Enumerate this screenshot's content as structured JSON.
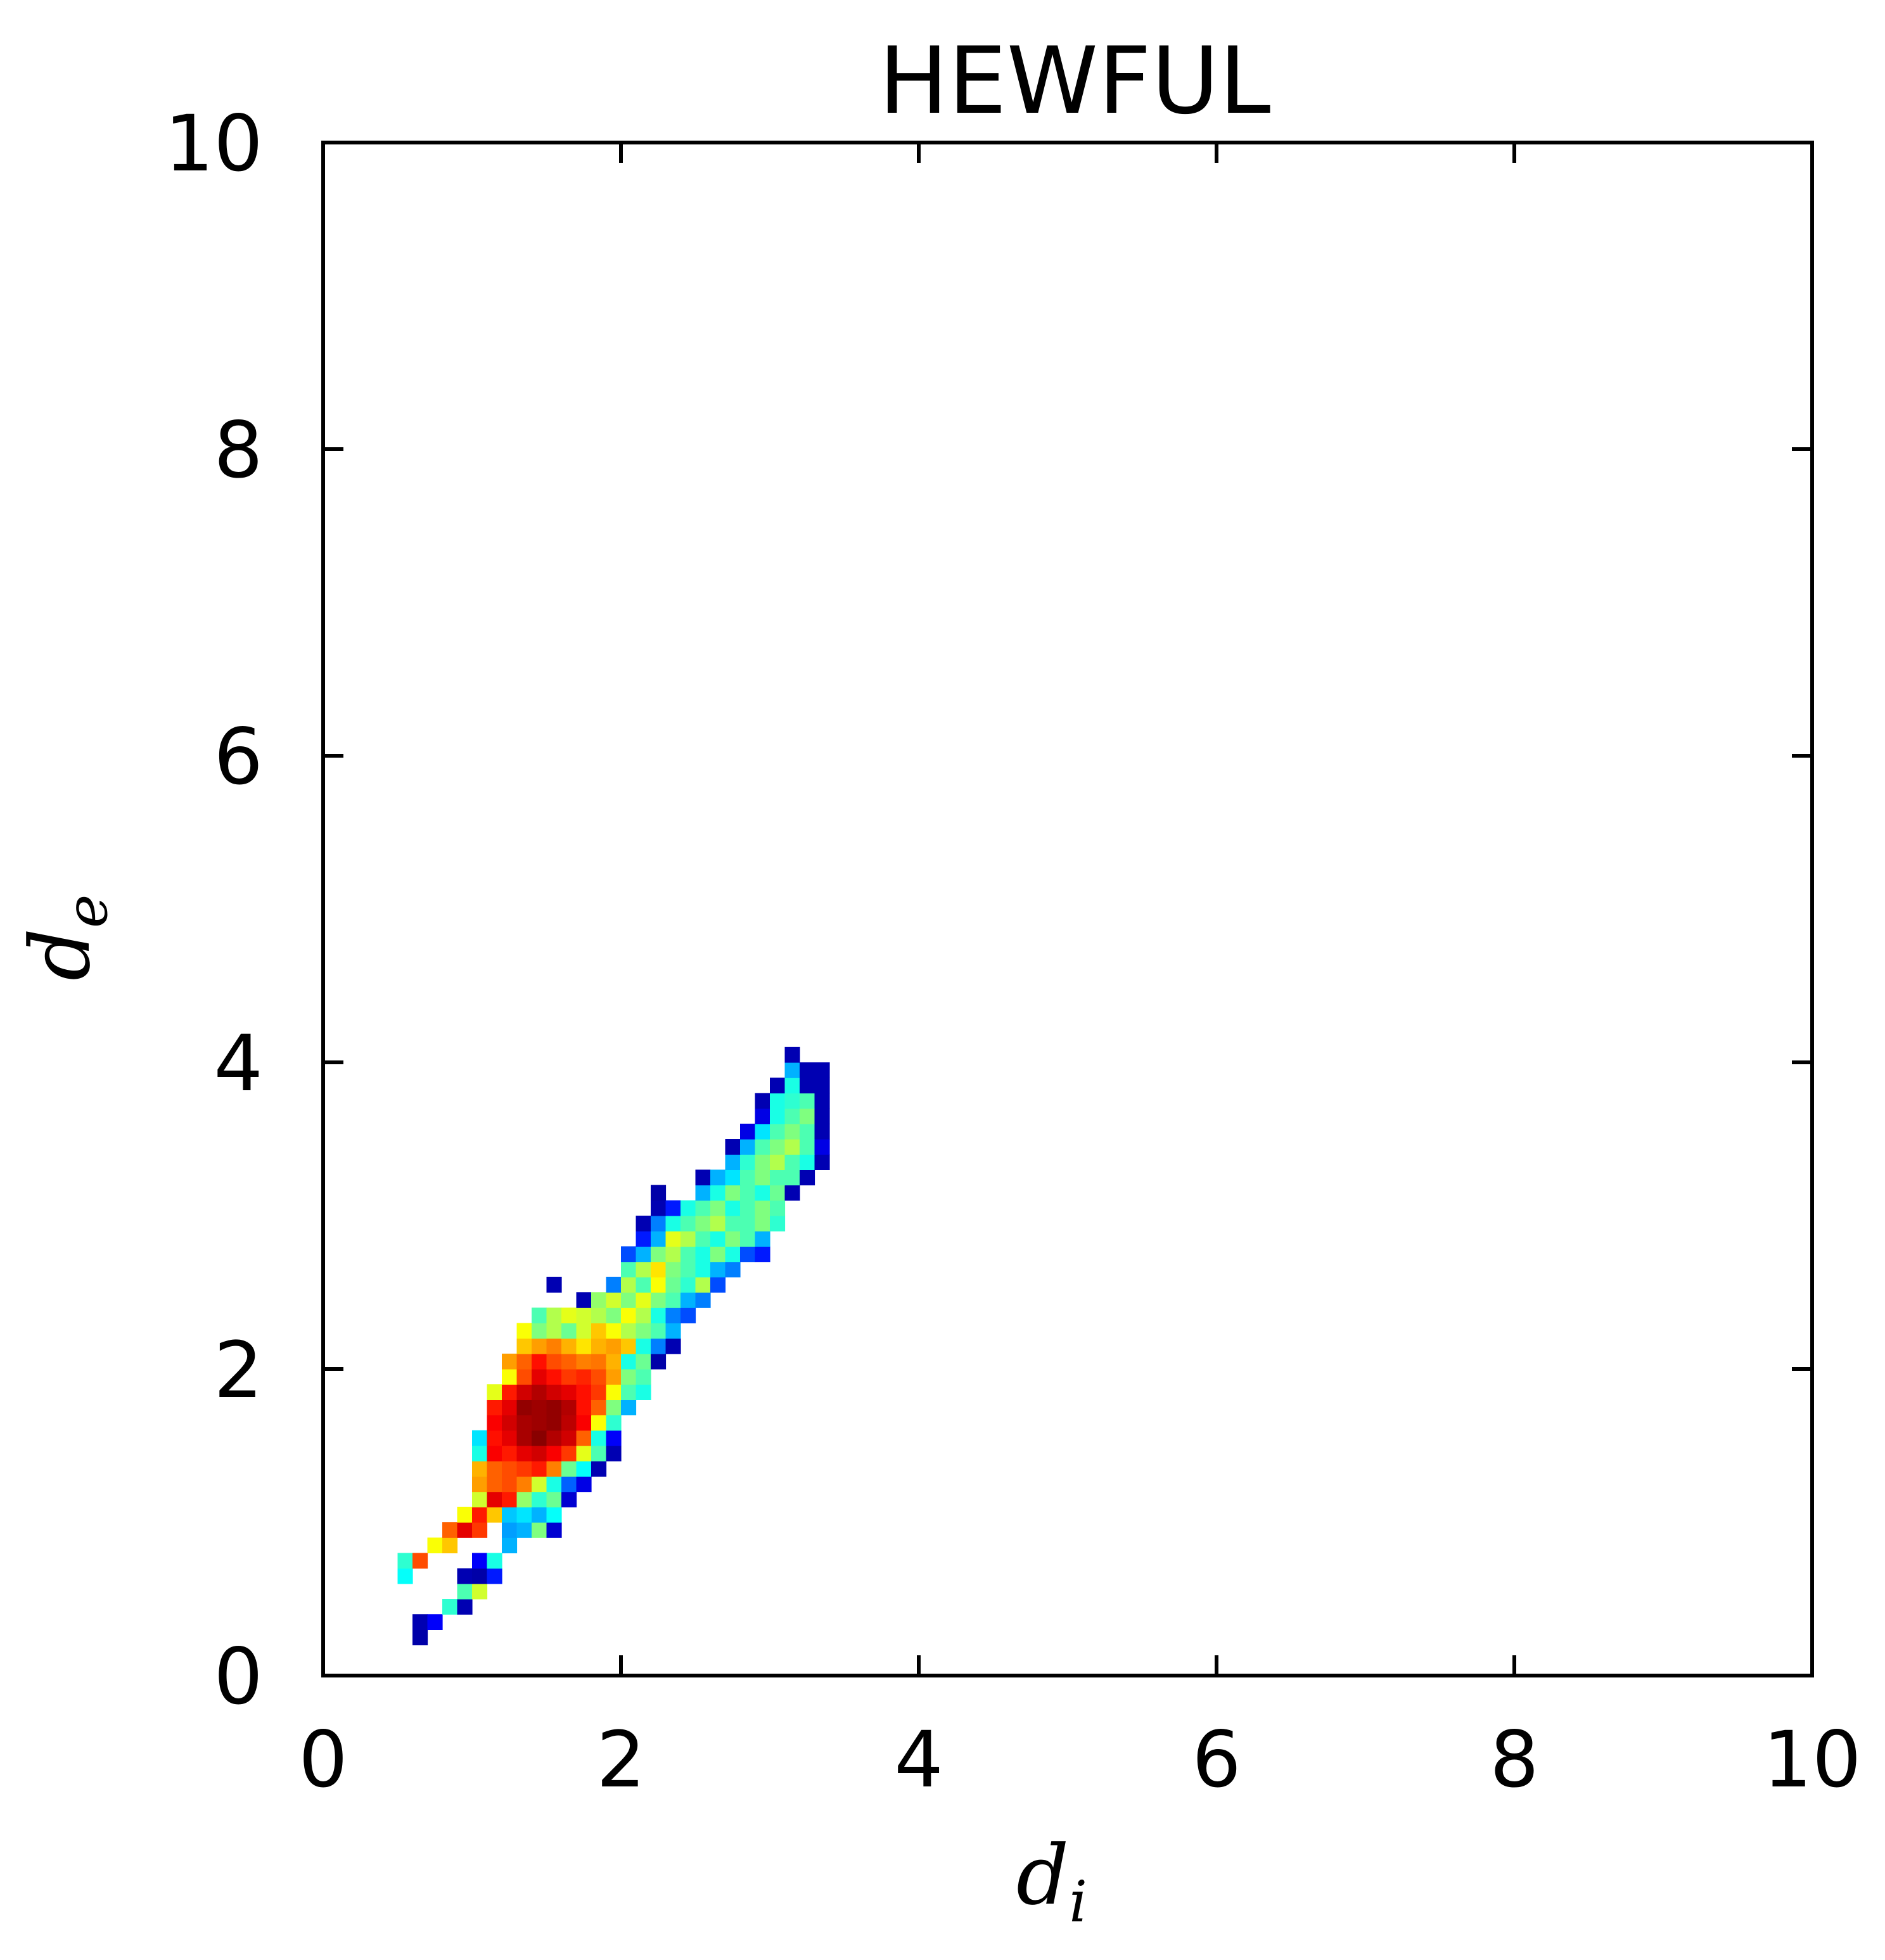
{
  "chart_data": {
    "type": "heatmap",
    "title": "HEWFUL",
    "xlabel": {
      "symbol": "d",
      "subscript": "i"
    },
    "ylabel": {
      "symbol": "d",
      "subscript": "e"
    },
    "xlim": [
      0,
      10
    ],
    "ylim": [
      0,
      10
    ],
    "xticks": [
      "0",
      "2",
      "4",
      "6",
      "8",
      "10"
    ],
    "yticks": [
      "0",
      "2",
      "4",
      "6",
      "8",
      "10"
    ],
    "grid": false,
    "legend": "none",
    "colormap": "jet",
    "colorscale_stops": [
      "#00007f",
      "#0000ff",
      "#007fff",
      "#00ffff",
      "#7fff7f",
      "#ffff00",
      "#ff7f00",
      "#ff0000",
      "#7f0000"
    ],
    "bin_size": 0.1,
    "value_range": [
      0,
      1
    ],
    "cells": [
      [
        0.65,
        0.25,
        0.04
      ],
      [
        0.65,
        0.35,
        0.05
      ],
      [
        0.75,
        0.35,
        0.12
      ],
      [
        0.85,
        0.45,
        0.42
      ],
      [
        0.95,
        0.45,
        0.05
      ],
      [
        0.95,
        0.55,
        0.45
      ],
      [
        1.05,
        0.55,
        0.58
      ],
      [
        0.95,
        0.65,
        0.05
      ],
      [
        1.05,
        0.65,
        0.04
      ],
      [
        1.15,
        0.65,
        0.15
      ],
      [
        0.55,
        0.65,
        0.38
      ],
      [
        0.55,
        0.75,
        0.42
      ],
      [
        0.65,
        0.75,
        0.8
      ],
      [
        1.05,
        0.75,
        0.12
      ],
      [
        1.15,
        0.75,
        0.4
      ],
      [
        0.75,
        0.85,
        0.62
      ],
      [
        0.85,
        0.85,
        0.68
      ],
      [
        1.25,
        0.85,
        0.3
      ],
      [
        0.85,
        0.95,
        0.78
      ],
      [
        0.95,
        0.95,
        0.9
      ],
      [
        1.05,
        0.95,
        0.82
      ],
      [
        1.25,
        0.95,
        0.28
      ],
      [
        1.35,
        0.95,
        0.3
      ],
      [
        1.45,
        0.95,
        0.5
      ],
      [
        1.55,
        0.95,
        0.08
      ],
      [
        0.95,
        1.05,
        0.62
      ],
      [
        1.05,
        1.05,
        0.85
      ],
      [
        1.15,
        1.05,
        0.68
      ],
      [
        1.25,
        1.05,
        0.32
      ],
      [
        1.35,
        1.05,
        0.35
      ],
      [
        1.45,
        1.05,
        0.3
      ],
      [
        1.55,
        1.05,
        0.38
      ],
      [
        1.05,
        1.15,
        0.58
      ],
      [
        1.15,
        1.15,
        0.9
      ],
      [
        1.25,
        1.15,
        0.85
      ],
      [
        1.35,
        1.15,
        0.52
      ],
      [
        1.45,
        1.15,
        0.42
      ],
      [
        1.55,
        1.15,
        0.48
      ],
      [
        1.65,
        1.15,
        0.08
      ],
      [
        1.05,
        1.25,
        0.72
      ],
      [
        1.15,
        1.25,
        0.78
      ],
      [
        1.25,
        1.25,
        0.8
      ],
      [
        1.35,
        1.25,
        0.75
      ],
      [
        1.45,
        1.25,
        0.58
      ],
      [
        1.55,
        1.25,
        0.4
      ],
      [
        1.65,
        1.25,
        0.22
      ],
      [
        1.75,
        1.25,
        0.1
      ],
      [
        1.05,
        1.35,
        0.7
      ],
      [
        1.15,
        1.35,
        0.78
      ],
      [
        1.25,
        1.35,
        0.8
      ],
      [
        1.35,
        1.35,
        0.82
      ],
      [
        1.45,
        1.35,
        0.85
      ],
      [
        1.55,
        1.35,
        0.75
      ],
      [
        1.65,
        1.35,
        0.48
      ],
      [
        1.75,
        1.35,
        0.38
      ],
      [
        1.85,
        1.35,
        0.05
      ],
      [
        1.05,
        1.45,
        0.4
      ],
      [
        1.15,
        1.45,
        0.88
      ],
      [
        1.25,
        1.45,
        0.85
      ],
      [
        1.35,
        1.45,
        0.9
      ],
      [
        1.45,
        1.45,
        0.92
      ],
      [
        1.55,
        1.45,
        0.88
      ],
      [
        1.65,
        1.45,
        0.82
      ],
      [
        1.75,
        1.45,
        0.6
      ],
      [
        1.85,
        1.45,
        0.45
      ],
      [
        1.95,
        1.45,
        0.05
      ],
      [
        1.05,
        1.55,
        0.35
      ],
      [
        1.15,
        1.55,
        0.86
      ],
      [
        1.25,
        1.55,
        0.9
      ],
      [
        1.35,
        1.55,
        0.96
      ],
      [
        1.45,
        1.55,
        0.99
      ],
      [
        1.55,
        1.55,
        0.95
      ],
      [
        1.65,
        1.55,
        0.92
      ],
      [
        1.75,
        1.55,
        0.78
      ],
      [
        1.85,
        1.55,
        0.4
      ],
      [
        1.95,
        1.55,
        0.12
      ],
      [
        1.15,
        1.65,
        0.88
      ],
      [
        1.25,
        1.65,
        0.92
      ],
      [
        1.35,
        1.65,
        0.96
      ],
      [
        1.45,
        1.65,
        0.97
      ],
      [
        1.55,
        1.65,
        0.98
      ],
      [
        1.65,
        1.65,
        0.94
      ],
      [
        1.75,
        1.65,
        0.88
      ],
      [
        1.85,
        1.65,
        0.62
      ],
      [
        1.95,
        1.65,
        0.42
      ],
      [
        1.15,
        1.75,
        0.85
      ],
      [
        1.25,
        1.75,
        0.9
      ],
      [
        1.35,
        1.75,
        0.98
      ],
      [
        1.45,
        1.75,
        0.97
      ],
      [
        1.55,
        1.75,
        0.98
      ],
      [
        1.65,
        1.75,
        0.95
      ],
      [
        1.75,
        1.75,
        0.86
      ],
      [
        1.85,
        1.75,
        0.78
      ],
      [
        1.95,
        1.75,
        0.5
      ],
      [
        2.05,
        1.75,
        0.3
      ],
      [
        1.15,
        1.85,
        0.6
      ],
      [
        1.25,
        1.85,
        0.85
      ],
      [
        1.35,
        1.85,
        0.92
      ],
      [
        1.45,
        1.85,
        0.95
      ],
      [
        1.55,
        1.85,
        0.92
      ],
      [
        1.65,
        1.85,
        0.9
      ],
      [
        1.75,
        1.85,
        0.86
      ],
      [
        1.85,
        1.85,
        0.82
      ],
      [
        1.95,
        1.85,
        0.62
      ],
      [
        2.05,
        1.85,
        0.45
      ],
      [
        2.15,
        1.85,
        0.4
      ],
      [
        1.25,
        1.95,
        0.62
      ],
      [
        1.35,
        1.95,
        0.8
      ],
      [
        1.45,
        1.95,
        0.9
      ],
      [
        1.55,
        1.95,
        0.86
      ],
      [
        1.65,
        1.95,
        0.82
      ],
      [
        1.75,
        1.95,
        0.84
      ],
      [
        1.85,
        1.95,
        0.8
      ],
      [
        1.95,
        1.95,
        0.72
      ],
      [
        2.05,
        1.95,
        0.5
      ],
      [
        2.15,
        1.95,
        0.45
      ],
      [
        1.25,
        2.05,
        0.72
      ],
      [
        1.35,
        2.05,
        0.78
      ],
      [
        1.45,
        2.05,
        0.86
      ],
      [
        1.55,
        2.05,
        0.8
      ],
      [
        1.65,
        2.05,
        0.78
      ],
      [
        1.75,
        2.05,
        0.75
      ],
      [
        1.85,
        2.05,
        0.76
      ],
      [
        1.95,
        2.05,
        0.7
      ],
      [
        2.05,
        2.05,
        0.4
      ],
      [
        2.15,
        2.05,
        0.48
      ],
      [
        2.25,
        2.05,
        0.04
      ],
      [
        1.35,
        2.15,
        0.68
      ],
      [
        1.45,
        2.15,
        0.72
      ],
      [
        1.55,
        2.15,
        0.75
      ],
      [
        1.65,
        2.15,
        0.7
      ],
      [
        1.75,
        2.15,
        0.65
      ],
      [
        1.85,
        2.15,
        0.7
      ],
      [
        1.95,
        2.15,
        0.72
      ],
      [
        2.05,
        2.15,
        0.68
      ],
      [
        2.15,
        2.15,
        0.4
      ],
      [
        2.25,
        2.15,
        0.25
      ],
      [
        2.35,
        2.15,
        0.05
      ],
      [
        1.35,
        2.25,
        0.62
      ],
      [
        1.45,
        2.25,
        0.5
      ],
      [
        1.55,
        2.25,
        0.55
      ],
      [
        1.65,
        2.25,
        0.48
      ],
      [
        1.75,
        2.25,
        0.58
      ],
      [
        1.85,
        2.25,
        0.68
      ],
      [
        1.95,
        2.25,
        0.62
      ],
      [
        2.05,
        2.25,
        0.55
      ],
      [
        2.15,
        2.25,
        0.5
      ],
      [
        2.25,
        2.25,
        0.45
      ],
      [
        2.35,
        2.25,
        0.3
      ],
      [
        1.45,
        2.35,
        0.45
      ],
      [
        1.55,
        2.35,
        0.55
      ],
      [
        1.65,
        2.35,
        0.6
      ],
      [
        1.75,
        2.35,
        0.58
      ],
      [
        1.85,
        2.35,
        0.55
      ],
      [
        1.95,
        2.35,
        0.5
      ],
      [
        2.05,
        2.35,
        0.62
      ],
      [
        2.15,
        2.35,
        0.55
      ],
      [
        2.25,
        2.35,
        0.4
      ],
      [
        2.35,
        2.35,
        0.25
      ],
      [
        2.45,
        2.35,
        0.2
      ],
      [
        1.75,
        2.45,
        0.05
      ],
      [
        1.85,
        2.45,
        0.52
      ],
      [
        1.95,
        2.45,
        0.58
      ],
      [
        2.05,
        2.45,
        0.5
      ],
      [
        2.15,
        2.45,
        0.6
      ],
      [
        2.25,
        2.45,
        0.5
      ],
      [
        2.35,
        2.45,
        0.45
      ],
      [
        2.45,
        2.45,
        0.3
      ],
      [
        2.55,
        2.45,
        0.25
      ],
      [
        1.55,
        2.55,
        0.05
      ],
      [
        1.95,
        2.55,
        0.25
      ],
      [
        2.05,
        2.55,
        0.55
      ],
      [
        2.15,
        2.55,
        0.45
      ],
      [
        2.25,
        2.55,
        0.62
      ],
      [
        2.35,
        2.55,
        0.48
      ],
      [
        2.45,
        2.55,
        0.42
      ],
      [
        2.55,
        2.55,
        0.55
      ],
      [
        2.65,
        2.55,
        0.2
      ],
      [
        2.05,
        2.65,
        0.45
      ],
      [
        2.15,
        2.65,
        0.55
      ],
      [
        2.25,
        2.65,
        0.65
      ],
      [
        2.35,
        2.65,
        0.5
      ],
      [
        2.45,
        2.65,
        0.45
      ],
      [
        2.55,
        2.65,
        0.4
      ],
      [
        2.65,
        2.65,
        0.3
      ],
      [
        2.75,
        2.65,
        0.25
      ],
      [
        2.05,
        2.75,
        0.2
      ],
      [
        2.15,
        2.75,
        0.3
      ],
      [
        2.25,
        2.75,
        0.5
      ],
      [
        2.35,
        2.75,
        0.55
      ],
      [
        2.45,
        2.75,
        0.45
      ],
      [
        2.55,
        2.75,
        0.4
      ],
      [
        2.65,
        2.75,
        0.5
      ],
      [
        2.75,
        2.75,
        0.4
      ],
      [
        2.85,
        2.75,
        0.2
      ],
      [
        2.95,
        2.75,
        0.15
      ],
      [
        2.15,
        2.85,
        0.15
      ],
      [
        2.25,
        2.85,
        0.3
      ],
      [
        2.35,
        2.85,
        0.6
      ],
      [
        2.45,
        2.85,
        0.55
      ],
      [
        2.55,
        2.85,
        0.45
      ],
      [
        2.65,
        2.85,
        0.4
      ],
      [
        2.75,
        2.85,
        0.5
      ],
      [
        2.85,
        2.85,
        0.45
      ],
      [
        2.95,
        2.85,
        0.3
      ],
      [
        2.15,
        2.95,
        0.05
      ],
      [
        2.25,
        2.95,
        0.25
      ],
      [
        2.35,
        2.95,
        0.4
      ],
      [
        2.45,
        2.95,
        0.45
      ],
      [
        2.55,
        2.95,
        0.5
      ],
      [
        2.65,
        2.95,
        0.55
      ],
      [
        2.75,
        2.95,
        0.45
      ],
      [
        2.85,
        2.95,
        0.45
      ],
      [
        2.95,
        2.95,
        0.5
      ],
      [
        3.05,
        2.95,
        0.42
      ],
      [
        2.25,
        3.05,
        0.05
      ],
      [
        2.35,
        3.05,
        0.15
      ],
      [
        2.45,
        3.05,
        0.4
      ],
      [
        2.55,
        3.05,
        0.45
      ],
      [
        2.65,
        3.05,
        0.5
      ],
      [
        2.75,
        3.05,
        0.4
      ],
      [
        2.85,
        3.05,
        0.45
      ],
      [
        2.95,
        3.05,
        0.5
      ],
      [
        3.05,
        3.05,
        0.45
      ],
      [
        2.25,
        3.15,
        0.04
      ],
      [
        2.55,
        3.15,
        0.3
      ],
      [
        2.65,
        3.15,
        0.4
      ],
      [
        2.75,
        3.15,
        0.5
      ],
      [
        2.85,
        3.15,
        0.45
      ],
      [
        2.95,
        3.15,
        0.4
      ],
      [
        3.05,
        3.15,
        0.48
      ],
      [
        3.15,
        3.15,
        0.05
      ],
      [
        2.55,
        3.25,
        0.05
      ],
      [
        2.65,
        3.25,
        0.3
      ],
      [
        2.75,
        3.25,
        0.35
      ],
      [
        2.85,
        3.25,
        0.45
      ],
      [
        2.95,
        3.25,
        0.5
      ],
      [
        3.05,
        3.25,
        0.45
      ],
      [
        3.15,
        3.25,
        0.45
      ],
      [
        3.25,
        3.25,
        0.05
      ],
      [
        2.75,
        3.35,
        0.3
      ],
      [
        2.85,
        3.35,
        0.42
      ],
      [
        2.95,
        3.35,
        0.5
      ],
      [
        3.05,
        3.35,
        0.55
      ],
      [
        3.15,
        3.35,
        0.45
      ],
      [
        3.25,
        3.35,
        0.4
      ],
      [
        3.35,
        3.35,
        0.05
      ],
      [
        2.75,
        3.45,
        0.05
      ],
      [
        2.85,
        3.45,
        0.3
      ],
      [
        2.95,
        3.45,
        0.45
      ],
      [
        3.05,
        3.45,
        0.5
      ],
      [
        3.15,
        3.45,
        0.55
      ],
      [
        3.25,
        3.45,
        0.45
      ],
      [
        3.35,
        3.45,
        0.1
      ],
      [
        2.85,
        3.55,
        0.1
      ],
      [
        2.95,
        3.55,
        0.35
      ],
      [
        3.05,
        3.55,
        0.45
      ],
      [
        3.15,
        3.55,
        0.5
      ],
      [
        3.25,
        3.55,
        0.45
      ],
      [
        3.35,
        3.55,
        0.05
      ],
      [
        2.95,
        3.65,
        0.1
      ],
      [
        3.05,
        3.65,
        0.4
      ],
      [
        3.15,
        3.65,
        0.45
      ],
      [
        3.25,
        3.65,
        0.5
      ],
      [
        3.35,
        3.65,
        0.05
      ],
      [
        2.95,
        3.75,
        0.05
      ],
      [
        3.05,
        3.75,
        0.4
      ],
      [
        3.15,
        3.75,
        0.42
      ],
      [
        3.25,
        3.75,
        0.45
      ],
      [
        3.35,
        3.75,
        0.05
      ],
      [
        3.05,
        3.85,
        0.05
      ],
      [
        3.15,
        3.85,
        0.4
      ],
      [
        3.25,
        3.85,
        0.05
      ],
      [
        3.35,
        3.85,
        0.05
      ],
      [
        3.15,
        3.95,
        0.3
      ],
      [
        3.25,
        3.95,
        0.05
      ],
      [
        3.35,
        3.95,
        0.05
      ],
      [
        3.15,
        4.05,
        0.05
      ]
    ]
  }
}
